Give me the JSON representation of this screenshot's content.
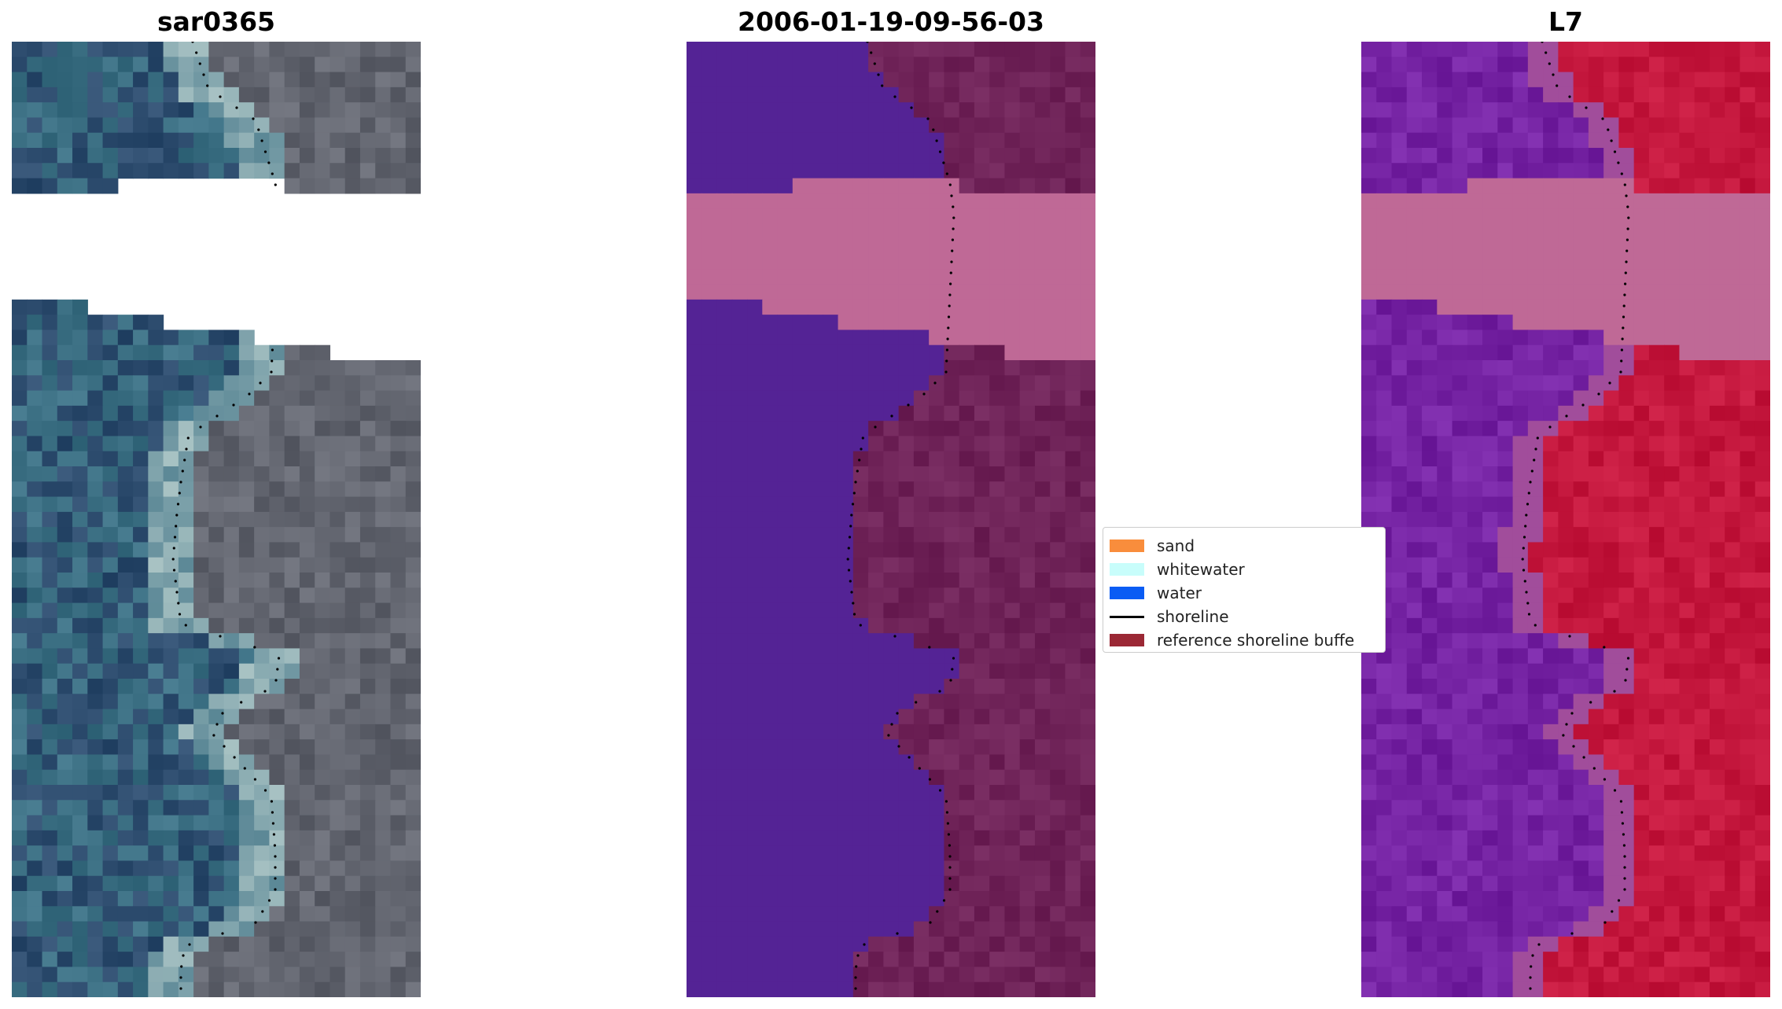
{
  "panels": [
    {
      "id": "rgb",
      "title": "sar0365"
    },
    {
      "id": "classified",
      "title": "2006-01-19-09-56-03"
    },
    {
      "id": "index",
      "title": "L7"
    }
  ],
  "legend": {
    "items": [
      {
        "label": "sand",
        "color": "#f98d3c",
        "kind": "patch"
      },
      {
        "label": "whitewater",
        "color": "#c8fdfb",
        "kind": "patch"
      },
      {
        "label": "water",
        "color": "#0a5cf4",
        "kind": "patch"
      },
      {
        "label": "shoreline",
        "color": "#000000",
        "kind": "line"
      },
      {
        "label": "reference shoreline buffe",
        "color": "#9b2835",
        "kind": "patch"
      }
    ]
  },
  "colors": {
    "rgb_water_dark": "#2d4c6e",
    "rgb_water_teal": "#3b6f83",
    "rgb_land": "#62656f",
    "rgb_bright": "#d7e6df",
    "class_water": "#542395",
    "class_land": "#6f2358",
    "class_cloud": "#bf6996",
    "index_water": "#7523a3",
    "index_land": "#c4173d",
    "index_cloud": "#bf6996",
    "shoreline": "#000000"
  }
}
